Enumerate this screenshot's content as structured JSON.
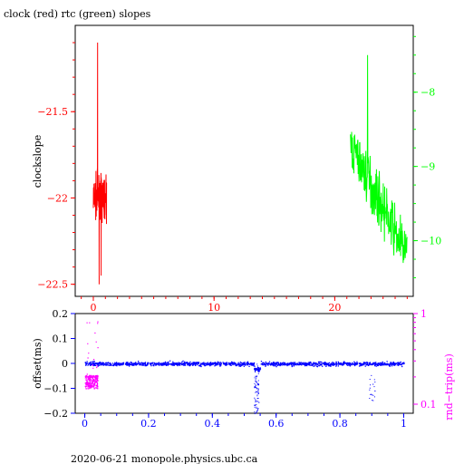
{
  "title": "clock (red) rtc (green) slopes",
  "footer": "2020-06-21  monopole.physics.ubc.ca",
  "chart_data": [
    {
      "type": "line",
      "name": "slopes",
      "ylabel": "clockslope",
      "x": {
        "range": [
          -1.5,
          26.5
        ],
        "ticks": [
          0,
          10,
          20
        ],
        "tick_labels": [
          "0",
          "10",
          "20"
        ],
        "color": "#ff0000"
      },
      "y_left": {
        "range": [
          -22.57,
          -21.0
        ],
        "ticks": [
          -21.5,
          -22,
          -22.5
        ],
        "tick_labels": [
          "−21.5",
          "−22",
          "−22.5"
        ],
        "color": "#ff0000"
      },
      "y_right": {
        "range": [
          -10.75,
          -7.1
        ],
        "ticks": [
          -8,
          -9,
          -10
        ],
        "tick_labels": [
          "−8",
          "−9",
          "−10"
        ],
        "color": "#00ff00"
      },
      "series": [
        {
          "color": "#ff0000",
          "axis": "left",
          "x_range": [
            0.0,
            1.1
          ],
          "y_min": -22.5,
          "y_max": -21.1,
          "center": -22.0,
          "spread": 0.12,
          "points": 120
        },
        {
          "color": "#00ff00",
          "axis": "right",
          "x_range": [
            21.3,
            26.0
          ],
          "y_min": -10.5,
          "y_max": -7.5,
          "start": -8.7,
          "end": -10.2,
          "spread": 0.35,
          "points": 200
        }
      ]
    },
    {
      "type": "scatter",
      "name": "offsets",
      "ylabel": "offset(ms)",
      "ylabel_right": "rnd−trip(ms)",
      "x": {
        "range": [
          -0.03,
          1.03
        ],
        "ticks": [
          0,
          0.2,
          0.4,
          0.6,
          0.8,
          1
        ],
        "tick_labels": [
          "0",
          "0.2",
          "0.4",
          "0.6",
          "0.8",
          "1"
        ],
        "color": "#0000ff"
      },
      "y_left": {
        "range": [
          -0.2,
          0.2
        ],
        "ticks": [
          0.2,
          0.1,
          0,
          -0.1,
          -0.2
        ],
        "tick_labels": [
          "0.2",
          "0.1",
          "0",
          "−0.1",
          "−0.2"
        ],
        "color": "#0000ff"
      },
      "y_right": {
        "scale": "log",
        "ticks": [
          1,
          0.1
        ],
        "tick_labels": [
          "1",
          "0.1"
        ],
        "color": "#ff00ff"
      },
      "series": [
        {
          "color": "#0000ff",
          "axis": "left",
          "x_range": [
            0.0,
            1.0
          ],
          "center": 0.0,
          "spread": 0.008
        },
        {
          "color": "#ff00ff",
          "axis": "right",
          "x_range": [
            0.0,
            0.04
          ],
          "y_min": 0.12,
          "y_max": 0.9
        }
      ]
    }
  ]
}
